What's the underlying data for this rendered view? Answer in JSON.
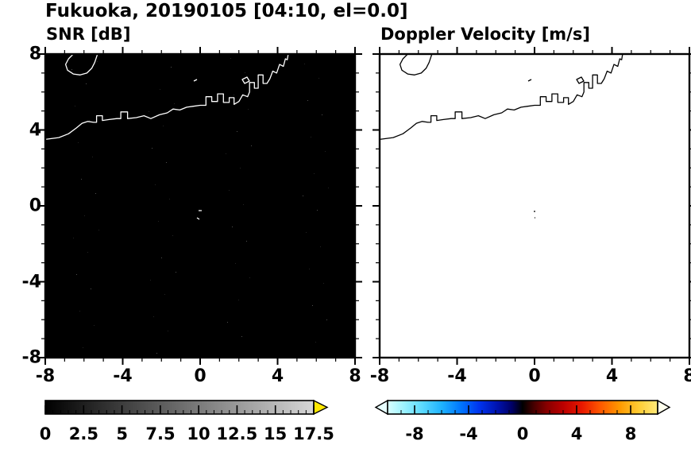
{
  "title": "Fukuoka, 20190105 [04:10, el=0.0]",
  "panels": {
    "snr": {
      "title": "SNR [dB]",
      "x_tick_labels": [
        {
          "text": "-8",
          "pct": 0
        },
        {
          "text": "-4",
          "pct": 25
        },
        {
          "text": "0",
          "pct": 50
        },
        {
          "text": "4",
          "pct": 75
        },
        {
          "text": "8",
          "pct": 100
        }
      ],
      "y_tick_labels": [
        {
          "text": "8",
          "pct": 0
        },
        {
          "text": "4",
          "pct": 25
        },
        {
          "text": "0",
          "pct": 50
        },
        {
          "text": "-4",
          "pct": 75
        },
        {
          "text": "-8",
          "pct": 100
        }
      ]
    },
    "doppler": {
      "title": "Doppler Velocity [m/s]",
      "x_tick_labels": [
        {
          "text": "-8",
          "pct": 0
        },
        {
          "text": "-4",
          "pct": 25
        },
        {
          "text": "0",
          "pct": 50
        },
        {
          "text": "4",
          "pct": 75
        },
        {
          "text": "8",
          "pct": 100
        }
      ]
    }
  },
  "colorbars": {
    "snr": {
      "over_arrow_color": "#ffe800",
      "labels": [
        {
          "text": "0",
          "pct": 0
        },
        {
          "text": "2.5",
          "pct": 14.3
        },
        {
          "text": "5",
          "pct": 28.6
        },
        {
          "text": "7.5",
          "pct": 42.9
        },
        {
          "text": "10",
          "pct": 57.1
        },
        {
          "text": "12.5",
          "pct": 71.4
        },
        {
          "text": "15",
          "pct": 85.7
        },
        {
          "text": "17.5",
          "pct": 100
        }
      ]
    },
    "doppler": {
      "labels": [
        {
          "text": "-8",
          "pct": 10
        },
        {
          "text": "-4",
          "pct": 30
        },
        {
          "text": "0",
          "pct": 50
        },
        {
          "text": "4",
          "pct": 70
        },
        {
          "text": "8",
          "pct": 90
        }
      ]
    }
  },
  "chart_data": [
    {
      "type": "heatmap",
      "title": "SNR [dB]",
      "suptitle": "Fukuoka, 20190105 [04:10, el=0.0]",
      "xlim": [
        -8,
        8
      ],
      "ylim": [
        -8,
        8
      ],
      "xticks": [
        -8,
        -4,
        0,
        4,
        8
      ],
      "yticks": [
        -8,
        -4,
        0,
        4,
        8
      ],
      "grid": false,
      "colorbar": {
        "range": [
          0,
          17.5
        ],
        "tick_values": [
          0,
          2.5,
          5,
          7.5,
          10,
          12.5,
          15,
          17.5
        ],
        "colormap": "grayscale black to light gray",
        "over_arrow_color": "#ffe800"
      },
      "field_summary": "Radar SNR field with essentially no echo: uniform ~0 dB (black) with sparse faint noise speckles; a few tiny returns near (0,-0.4)",
      "overlay": "Fukuoka coastline and harbor outlines drawn in white across the upper portion; small island outline near top-left"
    },
    {
      "type": "heatmap",
      "title": "Doppler Velocity [m/s]",
      "xlim": [
        -8,
        8
      ],
      "ylim": [
        -8,
        8
      ],
      "xticks": [
        -8,
        -4,
        0,
        4,
        8
      ],
      "yticks": [
        -8,
        -4,
        0,
        4,
        8
      ],
      "grid": false,
      "colorbar": {
        "range": [
          -10,
          10
        ],
        "tick_values": [
          -8,
          -4,
          0,
          4,
          8
        ],
        "colormap": "diverging cyan-blue-black-red-yellow with under/over arrows"
      },
      "field_summary": "No detected velocities: blank white field except a couple of tiny specks near (0,-0.4)",
      "overlay": "Fukuoka coastline and harbor outlines drawn in black across the upper portion; small island outline near top-left"
    }
  ]
}
